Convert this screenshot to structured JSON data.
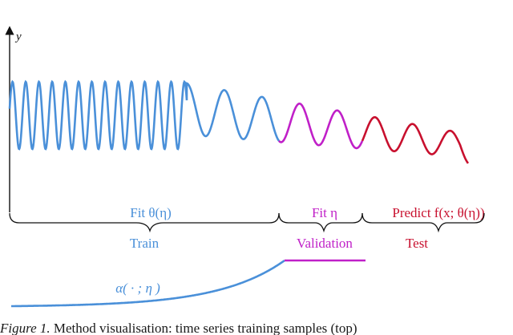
{
  "figure": {
    "y_axis_label": "y",
    "phases": {
      "train": {
        "label": "Train",
        "fit_label": "Fit θ(η)",
        "color": "#4a90d9"
      },
      "validation": {
        "label": "Validation",
        "fit_label": "Fit η",
        "color": "#c020c8"
      },
      "test": {
        "label": "Test",
        "fit_label": "Predict f(x; θ(η))",
        "color": "#c8102e"
      }
    },
    "weight_curve_label": "α( · ; η )",
    "axis_color": "#111111"
  },
  "caption": {
    "label": "Figure 1.",
    "text": "Method visualisation: time series training samples (top)"
  }
}
